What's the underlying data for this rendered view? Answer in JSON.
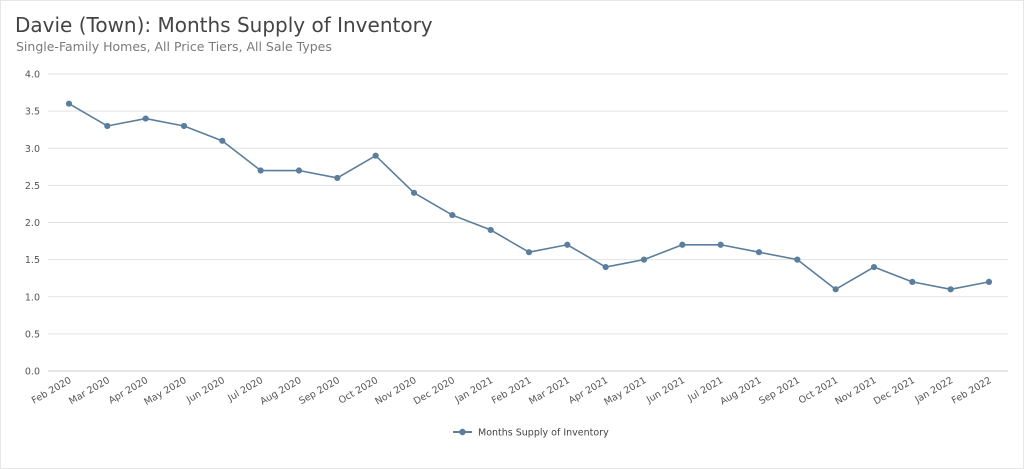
{
  "chart_data": {
    "type": "line",
    "title": "Davie (Town): Months Supply of Inventory",
    "subtitle": "Single-Family Homes, All Price Tiers, All Sale Types",
    "categories": [
      "Feb 2020",
      "Mar 2020",
      "Apr 2020",
      "May 2020",
      "Jun 2020",
      "Jul 2020",
      "Aug 2020",
      "Sep 2020",
      "Oct 2020",
      "Nov 2020",
      "Dec 2020",
      "Jan 2021",
      "Feb 2021",
      "Mar 2021",
      "Apr 2021",
      "May 2021",
      "Jun 2021",
      "Jul 2021",
      "Aug 2021",
      "Sep 2021",
      "Oct 2021",
      "Nov 2021",
      "Dec 2021",
      "Jan 2022",
      "Feb 2022"
    ],
    "series": [
      {
        "name": "Months Supply of Inventory",
        "color": "#5b7e9c",
        "values": [
          3.6,
          3.3,
          3.4,
          3.3,
          3.1,
          2.7,
          2.7,
          2.6,
          2.9,
          2.4,
          2.1,
          1.9,
          1.6,
          1.7,
          1.4,
          1.5,
          1.7,
          1.7,
          1.6,
          1.5,
          1.1,
          1.4,
          1.2,
          1.1,
          1.2
        ]
      }
    ],
    "ylim": [
      0,
      4.0
    ],
    "yticks": [
      "0.0",
      "0.5",
      "1.0",
      "1.5",
      "2.0",
      "2.5",
      "3.0",
      "3.5",
      "4.0"
    ],
    "xlabel": "",
    "ylabel": "",
    "grid": true,
    "legend_position": "bottom"
  }
}
